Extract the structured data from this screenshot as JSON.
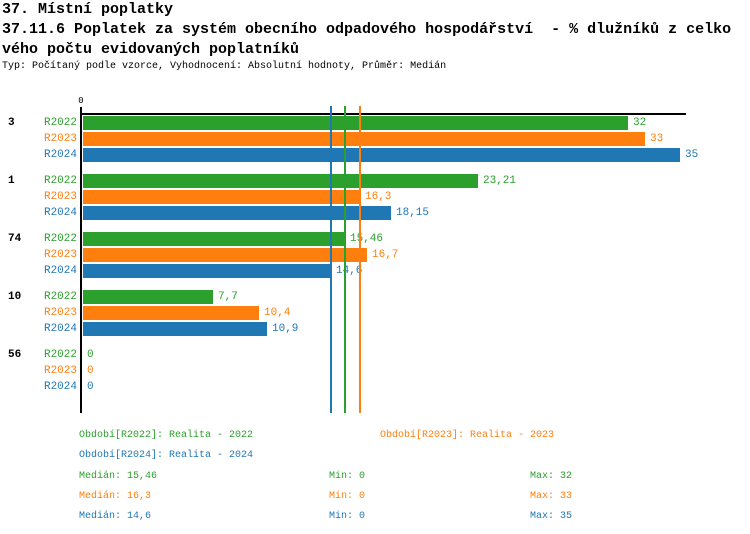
{
  "header": {
    "title": "37. Místní poplatky",
    "subtitle_line1": "37.11.6 Poplatek za systém obecního odpadového hospodářství  - % dlužníků z celko",
    "subtitle_line2": "vého počtu evidovaných poplatníků",
    "meta": "Typ: Počítaný podle vzorce, Vyhodnocení: Absolutní hodnoty, Průměr: Medián"
  },
  "colors": {
    "r2022_green": "#2ca02c",
    "r2023_orange": "#ff7f0e",
    "r2024_blue": "#1f77b4",
    "axis_black": "#000000"
  },
  "chart_data": {
    "type": "bar",
    "orientation": "horizontal",
    "title": "37.11.6 Poplatek za systém obecního odpadového hospodářství - % dlužníků z celkového počtu evidovaných poplatníků",
    "categories": [
      "3",
      "1",
      "74",
      "10",
      "56"
    ],
    "series": [
      {
        "name": "R2022",
        "color": "#2ca02c",
        "values": [
          32,
          23.21,
          15.46,
          7.7,
          0
        ],
        "display": [
          "32",
          "23,21",
          "15,46",
          "7,7",
          "0"
        ]
      },
      {
        "name": "R2023",
        "color": "#ff7f0e",
        "values": [
          33,
          16.3,
          16.7,
          10.4,
          0
        ],
        "display": [
          "33",
          "16,3",
          "16,7",
          "10,4",
          "0"
        ]
      },
      {
        "name": "R2024",
        "color": "#1f77b4",
        "values": [
          35,
          18.15,
          14.6,
          10.9,
          0
        ],
        "display": [
          "35",
          "18,15",
          "14,6",
          "10,9",
          "0"
        ]
      }
    ],
    "median_lines": [
      {
        "series": "R2024",
        "value": 14.6,
        "color": "#1f77b4"
      },
      {
        "series": "R2022",
        "value": 15.46,
        "color": "#2ca02c"
      },
      {
        "series": "R2023",
        "value": 16.3,
        "color": "#ff7f0e"
      }
    ],
    "xlim": [
      0,
      35
    ],
    "axis_zero_label": "0",
    "grid": false,
    "legend_position": "bottom"
  },
  "legend": {
    "items": [
      {
        "label": "Období[R2022]: Realita - 2022",
        "color": "#2ca02c"
      },
      {
        "label": "Období[R2023]: Realita - 2023",
        "color": "#ff7f0e"
      },
      {
        "label": "Období[R2024]: Realita - 2024",
        "color": "#1f77b4"
      }
    ]
  },
  "stats": {
    "rows": [
      {
        "median": "Medián: 15,46",
        "min": "Min: 0",
        "max": "Max: 32",
        "color": "#2ca02c"
      },
      {
        "median": "Medián: 16,3",
        "min": "Min: 0",
        "max": "Max: 33",
        "color": "#ff7f0e"
      },
      {
        "median": "Medián: 14,6",
        "min": "Min: 0",
        "max": "Max: 35",
        "color": "#1f77b4"
      }
    ]
  }
}
